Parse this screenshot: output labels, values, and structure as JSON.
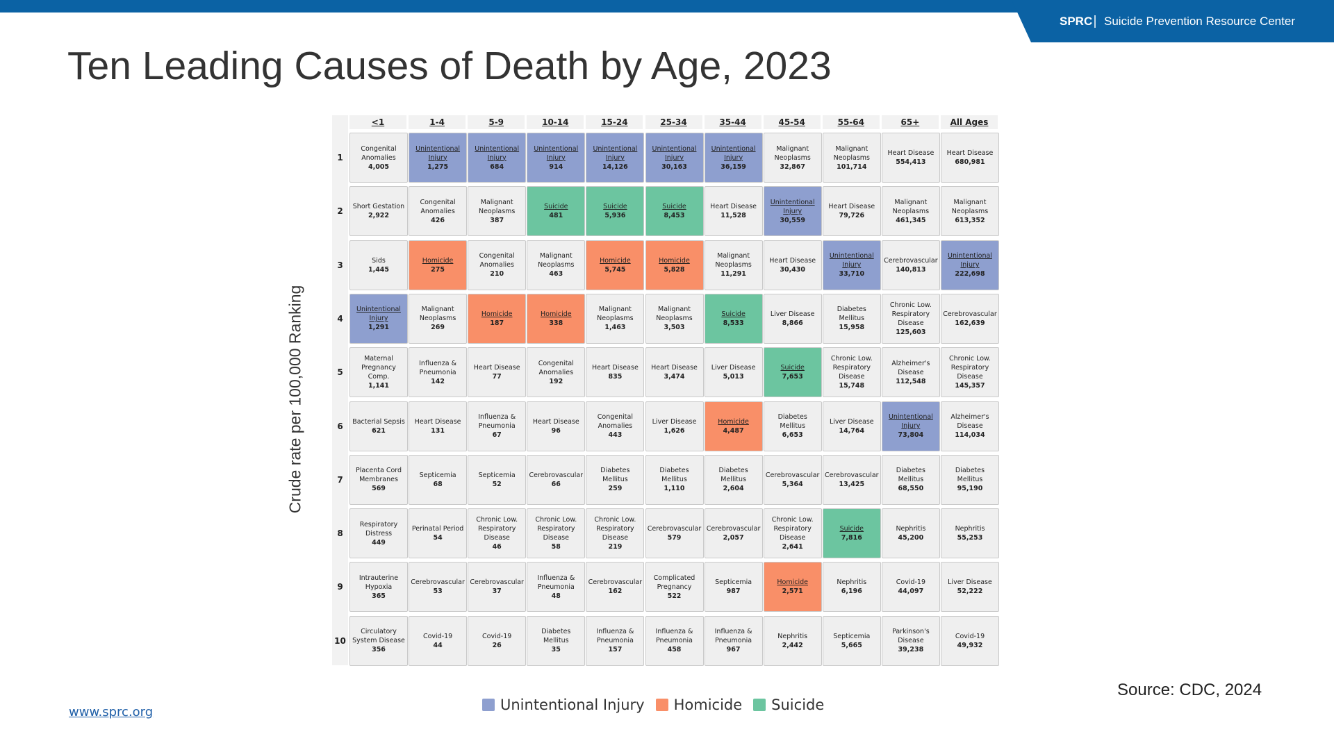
{
  "header": {
    "brand": "SPRC",
    "org": "Suicide Prevention Resource Center"
  },
  "title": "Ten Leading Causes of Death by Age, 2023",
  "y_axis_label": "Crude rate per 100,000 Ranking",
  "table": {
    "columns": [
      "<1",
      "1-4",
      "5-9",
      "10-14",
      "15-24",
      "25-34",
      "35-44",
      "45-54",
      "55-64",
      "65+",
      "All Ages"
    ],
    "rows": [
      {
        "rank": "1",
        "cells": [
          {
            "cause": "Congenital Anomalies",
            "count": "4,005",
            "color": "#efefef"
          },
          {
            "cause": "Unintentional Injury",
            "count": "1,275",
            "color": "#8e9fcf"
          },
          {
            "cause": "Unintentional Injury",
            "count": "684",
            "color": "#8e9fcf"
          },
          {
            "cause": "Unintentional Injury",
            "count": "914",
            "color": "#8e9fcf"
          },
          {
            "cause": "Unintentional Injury",
            "count": "14,126",
            "color": "#8e9fcf"
          },
          {
            "cause": "Unintentional Injury",
            "count": "30,163",
            "color": "#8e9fcf"
          },
          {
            "cause": "Unintentional Injury",
            "count": "36,159",
            "color": "#8e9fcf"
          },
          {
            "cause": "Malignant Neoplasms",
            "count": "32,867",
            "color": "#efefef"
          },
          {
            "cause": "Malignant Neoplasms",
            "count": "101,714",
            "color": "#efefef"
          },
          {
            "cause": "Heart Disease",
            "count": "554,413",
            "color": "#efefef"
          },
          {
            "cause": "Heart Disease",
            "count": "680,981",
            "color": "#efefef"
          }
        ]
      },
      {
        "rank": "2",
        "cells": [
          {
            "cause": "Short Gestation",
            "count": "2,922",
            "color": "#efefef"
          },
          {
            "cause": "Congenital Anomalies",
            "count": "426",
            "color": "#efefef"
          },
          {
            "cause": "Malignant Neoplasms",
            "count": "387",
            "color": "#efefef"
          },
          {
            "cause": "Suicide",
            "count": "481",
            "color": "#6cc5a0"
          },
          {
            "cause": "Suicide",
            "count": "5,936",
            "color": "#6cc5a0"
          },
          {
            "cause": "Suicide",
            "count": "8,453",
            "color": "#6cc5a0"
          },
          {
            "cause": "Heart Disease",
            "count": "11,528",
            "color": "#efefef"
          },
          {
            "cause": "Unintentional Injury",
            "count": "30,559",
            "color": "#8e9fcf"
          },
          {
            "cause": "Heart Disease",
            "count": "79,726",
            "color": "#efefef"
          },
          {
            "cause": "Malignant Neoplasms",
            "count": "461,345",
            "color": "#efefef"
          },
          {
            "cause": "Malignant Neoplasms",
            "count": "613,352",
            "color": "#efefef"
          }
        ]
      },
      {
        "rank": "3",
        "cells": [
          {
            "cause": "Sids",
            "count": "1,445",
            "color": "#efefef"
          },
          {
            "cause": "Homicide",
            "count": "275",
            "color": "#f98f68"
          },
          {
            "cause": "Congenital Anomalies",
            "count": "210",
            "color": "#efefef"
          },
          {
            "cause": "Malignant Neoplasms",
            "count": "463",
            "color": "#efefef"
          },
          {
            "cause": "Homicide",
            "count": "5,745",
            "color": "#f98f68"
          },
          {
            "cause": "Homicide",
            "count": "5,828",
            "color": "#f98f68"
          },
          {
            "cause": "Malignant Neoplasms",
            "count": "11,291",
            "color": "#efefef"
          },
          {
            "cause": "Heart Disease",
            "count": "30,430",
            "color": "#efefef"
          },
          {
            "cause": "Unintentional Injury",
            "count": "33,710",
            "color": "#8e9fcf"
          },
          {
            "cause": "Cerebrovascular",
            "count": "140,813",
            "color": "#efefef"
          },
          {
            "cause": "Unintentional Injury",
            "count": "222,698",
            "color": "#8e9fcf"
          }
        ]
      },
      {
        "rank": "4",
        "cells": [
          {
            "cause": "Unintentional Injury",
            "count": "1,291",
            "color": "#8e9fcf"
          },
          {
            "cause": "Malignant Neoplasms",
            "count": "269",
            "color": "#efefef"
          },
          {
            "cause": "Homicide",
            "count": "187",
            "color": "#f98f68"
          },
          {
            "cause": "Homicide",
            "count": "338",
            "color": "#f98f68"
          },
          {
            "cause": "Malignant Neoplasms",
            "count": "1,463",
            "color": "#efefef"
          },
          {
            "cause": "Malignant Neoplasms",
            "count": "3,503",
            "color": "#efefef"
          },
          {
            "cause": "Suicide",
            "count": "8,533",
            "color": "#6cc5a0"
          },
          {
            "cause": "Liver Disease",
            "count": "8,866",
            "color": "#efefef"
          },
          {
            "cause": "Diabetes Mellitus",
            "count": "15,958",
            "color": "#efefef"
          },
          {
            "cause": "Chronic Low. Respiratory Disease",
            "count": "125,603",
            "color": "#efefef"
          },
          {
            "cause": "Cerebrovascular",
            "count": "162,639",
            "color": "#efefef"
          }
        ]
      },
      {
        "rank": "5",
        "cells": [
          {
            "cause": "Maternal Pregnancy Comp.",
            "count": "1,141",
            "color": "#efefef"
          },
          {
            "cause": "Influenza & Pneumonia",
            "count": "142",
            "color": "#efefef"
          },
          {
            "cause": "Heart Disease",
            "count": "77",
            "color": "#efefef"
          },
          {
            "cause": "Congenital Anomalies",
            "count": "192",
            "color": "#efefef"
          },
          {
            "cause": "Heart Disease",
            "count": "835",
            "color": "#efefef"
          },
          {
            "cause": "Heart Disease",
            "count": "3,474",
            "color": "#efefef"
          },
          {
            "cause": "Liver Disease",
            "count": "5,013",
            "color": "#efefef"
          },
          {
            "cause": "Suicide",
            "count": "7,653",
            "color": "#6cc5a0"
          },
          {
            "cause": "Chronic Low. Respiratory Disease",
            "count": "15,748",
            "color": "#efefef"
          },
          {
            "cause": "Alzheimer's Disease",
            "count": "112,548",
            "color": "#efefef"
          },
          {
            "cause": "Chronic Low. Respiratory Disease",
            "count": "145,357",
            "color": "#efefef"
          }
        ]
      },
      {
        "rank": "6",
        "cells": [
          {
            "cause": "Bacterial Sepsis",
            "count": "621",
            "color": "#efefef"
          },
          {
            "cause": "Heart Disease",
            "count": "131",
            "color": "#efefef"
          },
          {
            "cause": "Influenza & Pneumonia",
            "count": "67",
            "color": "#efefef"
          },
          {
            "cause": "Heart Disease",
            "count": "96",
            "color": "#efefef"
          },
          {
            "cause": "Congenital Anomalies",
            "count": "443",
            "color": "#efefef"
          },
          {
            "cause": "Liver Disease",
            "count": "1,626",
            "color": "#efefef"
          },
          {
            "cause": "Homicide",
            "count": "4,487",
            "color": "#f98f68"
          },
          {
            "cause": "Diabetes Mellitus",
            "count": "6,653",
            "color": "#efefef"
          },
          {
            "cause": "Liver Disease",
            "count": "14,764",
            "color": "#efefef"
          },
          {
            "cause": "Unintentional Injury",
            "count": "73,804",
            "color": "#8e9fcf"
          },
          {
            "cause": "Alzheimer's Disease",
            "count": "114,034",
            "color": "#efefef"
          }
        ]
      },
      {
        "rank": "7",
        "cells": [
          {
            "cause": "Placenta Cord Membranes",
            "count": "569",
            "color": "#efefef"
          },
          {
            "cause": "Septicemia",
            "count": "68",
            "color": "#efefef"
          },
          {
            "cause": "Septicemia",
            "count": "52",
            "color": "#efefef"
          },
          {
            "cause": "Cerebrovascular",
            "count": "66",
            "color": "#efefef"
          },
          {
            "cause": "Diabetes Mellitus",
            "count": "259",
            "color": "#efefef"
          },
          {
            "cause": "Diabetes Mellitus",
            "count": "1,110",
            "color": "#efefef"
          },
          {
            "cause": "Diabetes Mellitus",
            "count": "2,604",
            "color": "#efefef"
          },
          {
            "cause": "Cerebrovascular",
            "count": "5,364",
            "color": "#efefef"
          },
          {
            "cause": "Cerebrovascular",
            "count": "13,425",
            "color": "#efefef"
          },
          {
            "cause": "Diabetes Mellitus",
            "count": "68,550",
            "color": "#efefef"
          },
          {
            "cause": "Diabetes Mellitus",
            "count": "95,190",
            "color": "#efefef"
          }
        ]
      },
      {
        "rank": "8",
        "cells": [
          {
            "cause": "Respiratory Distress",
            "count": "449",
            "color": "#efefef"
          },
          {
            "cause": "Perinatal Period",
            "count": "54",
            "color": "#efefef"
          },
          {
            "cause": "Chronic Low. Respiratory Disease",
            "count": "46",
            "color": "#efefef"
          },
          {
            "cause": "Chronic Low. Respiratory Disease",
            "count": "58",
            "color": "#efefef"
          },
          {
            "cause": "Chronic Low. Respiratory Disease",
            "count": "219",
            "color": "#efefef"
          },
          {
            "cause": "Cerebrovascular",
            "count": "579",
            "color": "#efefef"
          },
          {
            "cause": "Cerebrovascular",
            "count": "2,057",
            "color": "#efefef"
          },
          {
            "cause": "Chronic Low. Respiratory Disease",
            "count": "2,641",
            "color": "#efefef"
          },
          {
            "cause": "Suicide",
            "count": "7,816",
            "color": "#6cc5a0"
          },
          {
            "cause": "Nephritis",
            "count": "45,200",
            "color": "#efefef"
          },
          {
            "cause": "Nephritis",
            "count": "55,253",
            "color": "#efefef"
          }
        ]
      },
      {
        "rank": "9",
        "cells": [
          {
            "cause": "Intrauterine Hypoxia",
            "count": "365",
            "color": "#efefef"
          },
          {
            "cause": "Cerebrovascular",
            "count": "53",
            "color": "#efefef"
          },
          {
            "cause": "Cerebrovascular",
            "count": "37",
            "color": "#efefef"
          },
          {
            "cause": "Influenza & Pneumonia",
            "count": "48",
            "color": "#efefef"
          },
          {
            "cause": "Cerebrovascular",
            "count": "162",
            "color": "#efefef"
          },
          {
            "cause": "Complicated Pregnancy",
            "count": "522",
            "color": "#efefef"
          },
          {
            "cause": "Septicemia",
            "count": "987",
            "color": "#efefef"
          },
          {
            "cause": "Homicide",
            "count": "2,571",
            "color": "#f98f68"
          },
          {
            "cause": "Nephritis",
            "count": "6,196",
            "color": "#efefef"
          },
          {
            "cause": "Covid-19",
            "count": "44,097",
            "color": "#efefef"
          },
          {
            "cause": "Liver Disease",
            "count": "52,222",
            "color": "#efefef"
          }
        ]
      },
      {
        "rank": "10",
        "cells": [
          {
            "cause": "Circulatory System Disease",
            "count": "356",
            "color": "#efefef"
          },
          {
            "cause": "Covid-19",
            "count": "44",
            "color": "#efefef"
          },
          {
            "cause": "Covid-19",
            "count": "26",
            "color": "#efefef"
          },
          {
            "cause": "Diabetes Mellitus",
            "count": "35",
            "color": "#efefef"
          },
          {
            "cause": "Influenza & Pneumonia",
            "count": "157",
            "color": "#efefef"
          },
          {
            "cause": "Influenza & Pneumonia",
            "count": "458",
            "color": "#efefef"
          },
          {
            "cause": "Influenza & Pneumonia",
            "count": "967",
            "color": "#efefef"
          },
          {
            "cause": "Nephritis",
            "count": "2,442",
            "color": "#efefef"
          },
          {
            "cause": "Septicemia",
            "count": "5,665",
            "color": "#efefef"
          },
          {
            "cause": "Parkinson's Disease",
            "count": "39,238",
            "color": "#efefef"
          },
          {
            "cause": "Covid-19",
            "count": "49,932",
            "color": "#efefef"
          }
        ]
      }
    ]
  },
  "legend": [
    {
      "name": "Unintentional Injury",
      "color": "#8e9fcf"
    },
    {
      "name": "Homicide",
      "color": "#f98f68"
    },
    {
      "name": "Suicide",
      "color": "#6cc5a0"
    }
  ],
  "source": "Source: CDC, 2024",
  "link": "www.sprc.org"
}
